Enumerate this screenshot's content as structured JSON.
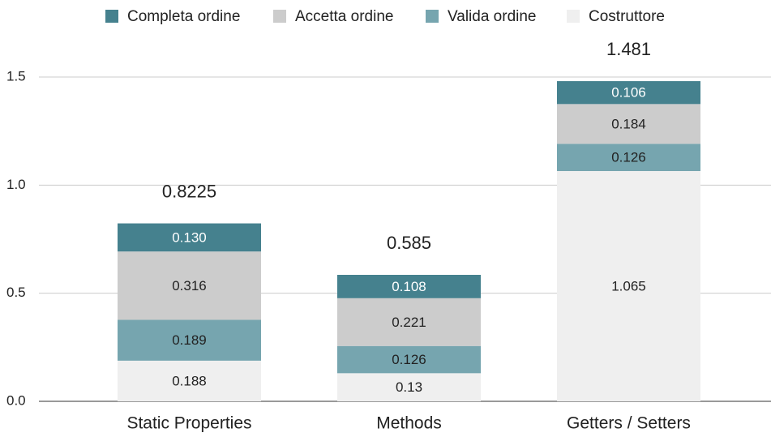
{
  "chart_data": {
    "type": "stacked-bar",
    "categories": [
      "Static Properties",
      "Methods",
      "Getters / Setters"
    ],
    "series": [
      {
        "name": "Costruttore",
        "color": "#efefef",
        "values": [
          0.188,
          0.13,
          1.065
        ]
      },
      {
        "name": "Valida ordine",
        "color": "#76a5af",
        "values": [
          0.189,
          0.126,
          0.126
        ]
      },
      {
        "name": "Accetta ordine",
        "color": "#cccccc",
        "values": [
          0.316,
          0.221,
          0.184
        ]
      },
      {
        "name": "Completa ordine",
        "color": "#45818e",
        "values": [
          0.13,
          0.108,
          0.106
        ],
        "value_labels": [
          "0.130",
          "0.108",
          "0.106"
        ]
      }
    ],
    "totals": [
      0.8225,
      0.585,
      1.481
    ],
    "ylim": [
      0,
      1.5
    ],
    "yticks": [
      {
        "value": 0,
        "label": "0.0"
      },
      0.5,
      {
        "value": 1,
        "label": "1.0"
      },
      1.5
    ],
    "grid": true,
    "legend": "top"
  }
}
